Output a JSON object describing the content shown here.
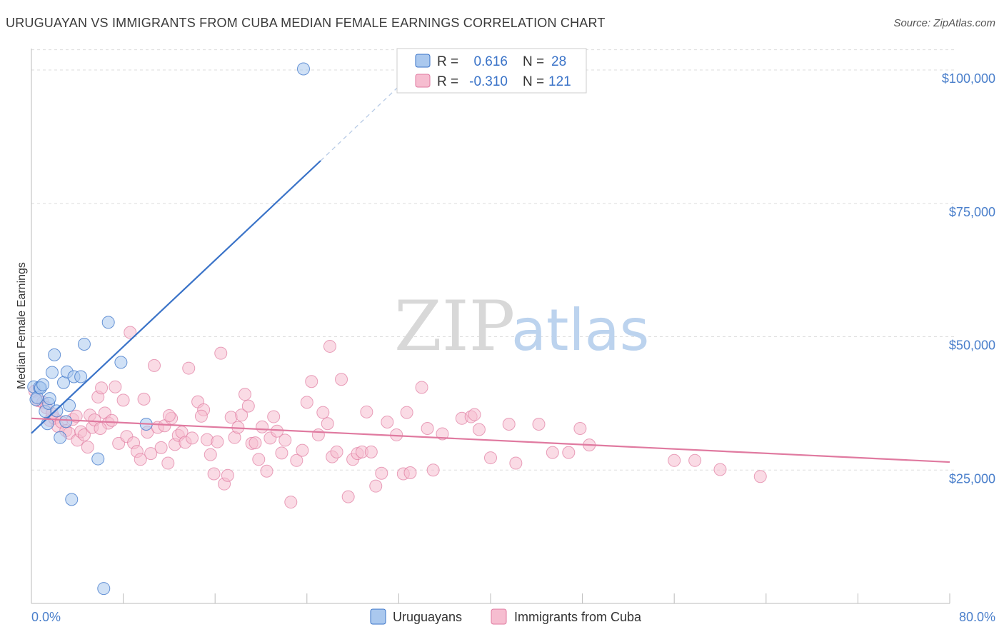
{
  "header": {
    "title": "URUGUAYAN VS IMMIGRANTS FROM CUBA MEDIAN FEMALE EARNINGS CORRELATION CHART",
    "source": "Source: ZipAtlas.com"
  },
  "watermark": {
    "zip": "ZIP",
    "atlas": "atlas"
  },
  "colors": {
    "uruguayan": "#3a73c8",
    "uruguayan_fill": "#aac8ee",
    "cuba": "#e07aa0",
    "cuba_fill": "#f6bdd0",
    "grid": "#dddddd",
    "axis_label": "#4a7fcb"
  },
  "legend": {
    "rows": [
      {
        "r_label": "R =",
        "r_value": "0.616",
        "n_label": "N =",
        "n_value": "28"
      },
      {
        "r_label": "R =",
        "r_value": "-0.310",
        "n_label": "N =",
        "n_value": "121"
      }
    ]
  },
  "chart_data": {
    "type": "scatter",
    "ylabel": "Median Female Earnings",
    "xlim": [
      0,
      80
    ],
    "ylim": [
      0,
      105000
    ],
    "x_tick_labels": [
      "0.0%",
      "80.0%"
    ],
    "y_ticks": [
      {
        "value": 25000,
        "label": "$25,000"
      },
      {
        "value": 50000,
        "label": "$50,000"
      },
      {
        "value": 75000,
        "label": "$75,000"
      },
      {
        "value": 100000,
        "label": "$100,000"
      }
    ],
    "grid": true,
    "legend_placement": "top-center",
    "series": [
      {
        "name": "Uruguayans",
        "trend": {
          "x": [
            0,
            25.2
          ],
          "y": [
            31900,
            83000
          ],
          "dashed_to": [
            33.5,
            100000
          ]
        },
        "points": [
          [
            0.2,
            40600
          ],
          [
            0.4,
            38200
          ],
          [
            0.5,
            38600
          ],
          [
            0.7,
            40500
          ],
          [
            0.8,
            40400
          ],
          [
            1.0,
            41000
          ],
          [
            1.2,
            36000
          ],
          [
            1.4,
            33700
          ],
          [
            1.5,
            37500
          ],
          [
            1.6,
            38400
          ],
          [
            1.8,
            43300
          ],
          [
            2.0,
            46600
          ],
          [
            2.2,
            36100
          ],
          [
            2.5,
            31100
          ],
          [
            2.8,
            41400
          ],
          [
            3.0,
            34100
          ],
          [
            3.1,
            43400
          ],
          [
            3.3,
            37100
          ],
          [
            3.5,
            19500
          ],
          [
            3.7,
            42500
          ],
          [
            4.3,
            42500
          ],
          [
            4.6,
            48600
          ],
          [
            5.8,
            27100
          ],
          [
            6.3,
            2800
          ],
          [
            6.7,
            52700
          ],
          [
            7.8,
            45200
          ],
          [
            10.0,
            33600
          ],
          [
            23.7,
            100200
          ]
        ]
      },
      {
        "name": "Immigrants from Cuba",
        "trend": {
          "x": [
            0,
            80
          ],
          "y": [
            34700,
            26500
          ]
        },
        "points": [
          [
            0.3,
            39800
          ],
          [
            0.6,
            38000
          ],
          [
            1.0,
            37700
          ],
          [
            1.3,
            36700
          ],
          [
            1.6,
            34300
          ],
          [
            2.0,
            34700
          ],
          [
            2.3,
            33200
          ],
          [
            2.6,
            34000
          ],
          [
            3.0,
            32400
          ],
          [
            3.3,
            31900
          ],
          [
            3.6,
            34500
          ],
          [
            4.0,
            30600
          ],
          [
            4.3,
            32200
          ],
          [
            4.6,
            31600
          ],
          [
            4.9,
            29300
          ],
          [
            5.1,
            35300
          ],
          [
            5.3,
            33000
          ],
          [
            5.5,
            34400
          ],
          [
            5.8,
            38700
          ],
          [
            6.1,
            40400
          ],
          [
            6.4,
            35700
          ],
          [
            6.7,
            33800
          ],
          [
            7.0,
            34300
          ],
          [
            7.3,
            40600
          ],
          [
            7.6,
            30000
          ],
          [
            8.0,
            38100
          ],
          [
            8.3,
            31300
          ],
          [
            8.6,
            50800
          ],
          [
            8.9,
            30100
          ],
          [
            9.2,
            28500
          ],
          [
            9.5,
            27000
          ],
          [
            9.8,
            38300
          ],
          [
            10.1,
            32100
          ],
          [
            10.4,
            28100
          ],
          [
            10.7,
            44600
          ],
          [
            11.0,
            33000
          ],
          [
            11.3,
            29200
          ],
          [
            11.6,
            33300
          ],
          [
            11.9,
            26300
          ],
          [
            12.2,
            34700
          ],
          [
            12.5,
            29800
          ],
          [
            12.8,
            31500
          ],
          [
            13.1,
            32100
          ],
          [
            13.4,
            30200
          ],
          [
            13.7,
            44100
          ],
          [
            14.0,
            31000
          ],
          [
            14.5,
            37800
          ],
          [
            15.0,
            36300
          ],
          [
            15.3,
            30700
          ],
          [
            15.6,
            27900
          ],
          [
            15.9,
            24300
          ],
          [
            16.2,
            30300
          ],
          [
            16.5,
            46900
          ],
          [
            16.8,
            22400
          ],
          [
            17.1,
            24000
          ],
          [
            17.4,
            34900
          ],
          [
            17.7,
            31100
          ],
          [
            18.0,
            33000
          ],
          [
            18.3,
            35300
          ],
          [
            18.6,
            39200
          ],
          [
            18.9,
            37000
          ],
          [
            19.2,
            30000
          ],
          [
            19.5,
            30100
          ],
          [
            19.8,
            27000
          ],
          [
            20.1,
            33100
          ],
          [
            20.5,
            24800
          ],
          [
            20.8,
            31000
          ],
          [
            21.1,
            35000
          ],
          [
            21.4,
            32300
          ],
          [
            21.8,
            28200
          ],
          [
            22.1,
            30600
          ],
          [
            22.6,
            19000
          ],
          [
            23.1,
            26800
          ],
          [
            23.6,
            28700
          ],
          [
            24.0,
            37700
          ],
          [
            24.4,
            41600
          ],
          [
            25.0,
            31600
          ],
          [
            25.4,
            35800
          ],
          [
            25.8,
            33700
          ],
          [
            26.2,
            27500
          ],
          [
            26.6,
            28400
          ],
          [
            27.0,
            42000
          ],
          [
            27.6,
            20000
          ],
          [
            28.0,
            27000
          ],
          [
            28.4,
            28100
          ],
          [
            28.8,
            28400
          ],
          [
            29.2,
            35900
          ],
          [
            29.6,
            28400
          ],
          [
            30.0,
            22000
          ],
          [
            30.5,
            24400
          ],
          [
            31.0,
            34000
          ],
          [
            31.8,
            31600
          ],
          [
            32.4,
            24300
          ],
          [
            32.7,
            35800
          ],
          [
            33.0,
            24500
          ],
          [
            34.0,
            40500
          ],
          [
            34.5,
            32800
          ],
          [
            35.0,
            25000
          ],
          [
            35.8,
            31800
          ],
          [
            37.5,
            34700
          ],
          [
            38.3,
            35000
          ],
          [
            38.6,
            35400
          ],
          [
            39.0,
            32600
          ],
          [
            40.0,
            27300
          ],
          [
            41.6,
            33600
          ],
          [
            42.2,
            26300
          ],
          [
            44.2,
            33600
          ],
          [
            45.4,
            28300
          ],
          [
            46.8,
            28300
          ],
          [
            47.8,
            32800
          ],
          [
            48.6,
            29700
          ],
          [
            56.0,
            26800
          ],
          [
            57.8,
            26800
          ],
          [
            60.0,
            25100
          ],
          [
            63.5,
            23800
          ],
          [
            1.8,
            35600
          ],
          [
            3.9,
            35100
          ],
          [
            6.0,
            32800
          ],
          [
            12.0,
            35200
          ],
          [
            26.0,
            48200
          ],
          [
            14.8,
            35100
          ]
        ]
      }
    ]
  }
}
